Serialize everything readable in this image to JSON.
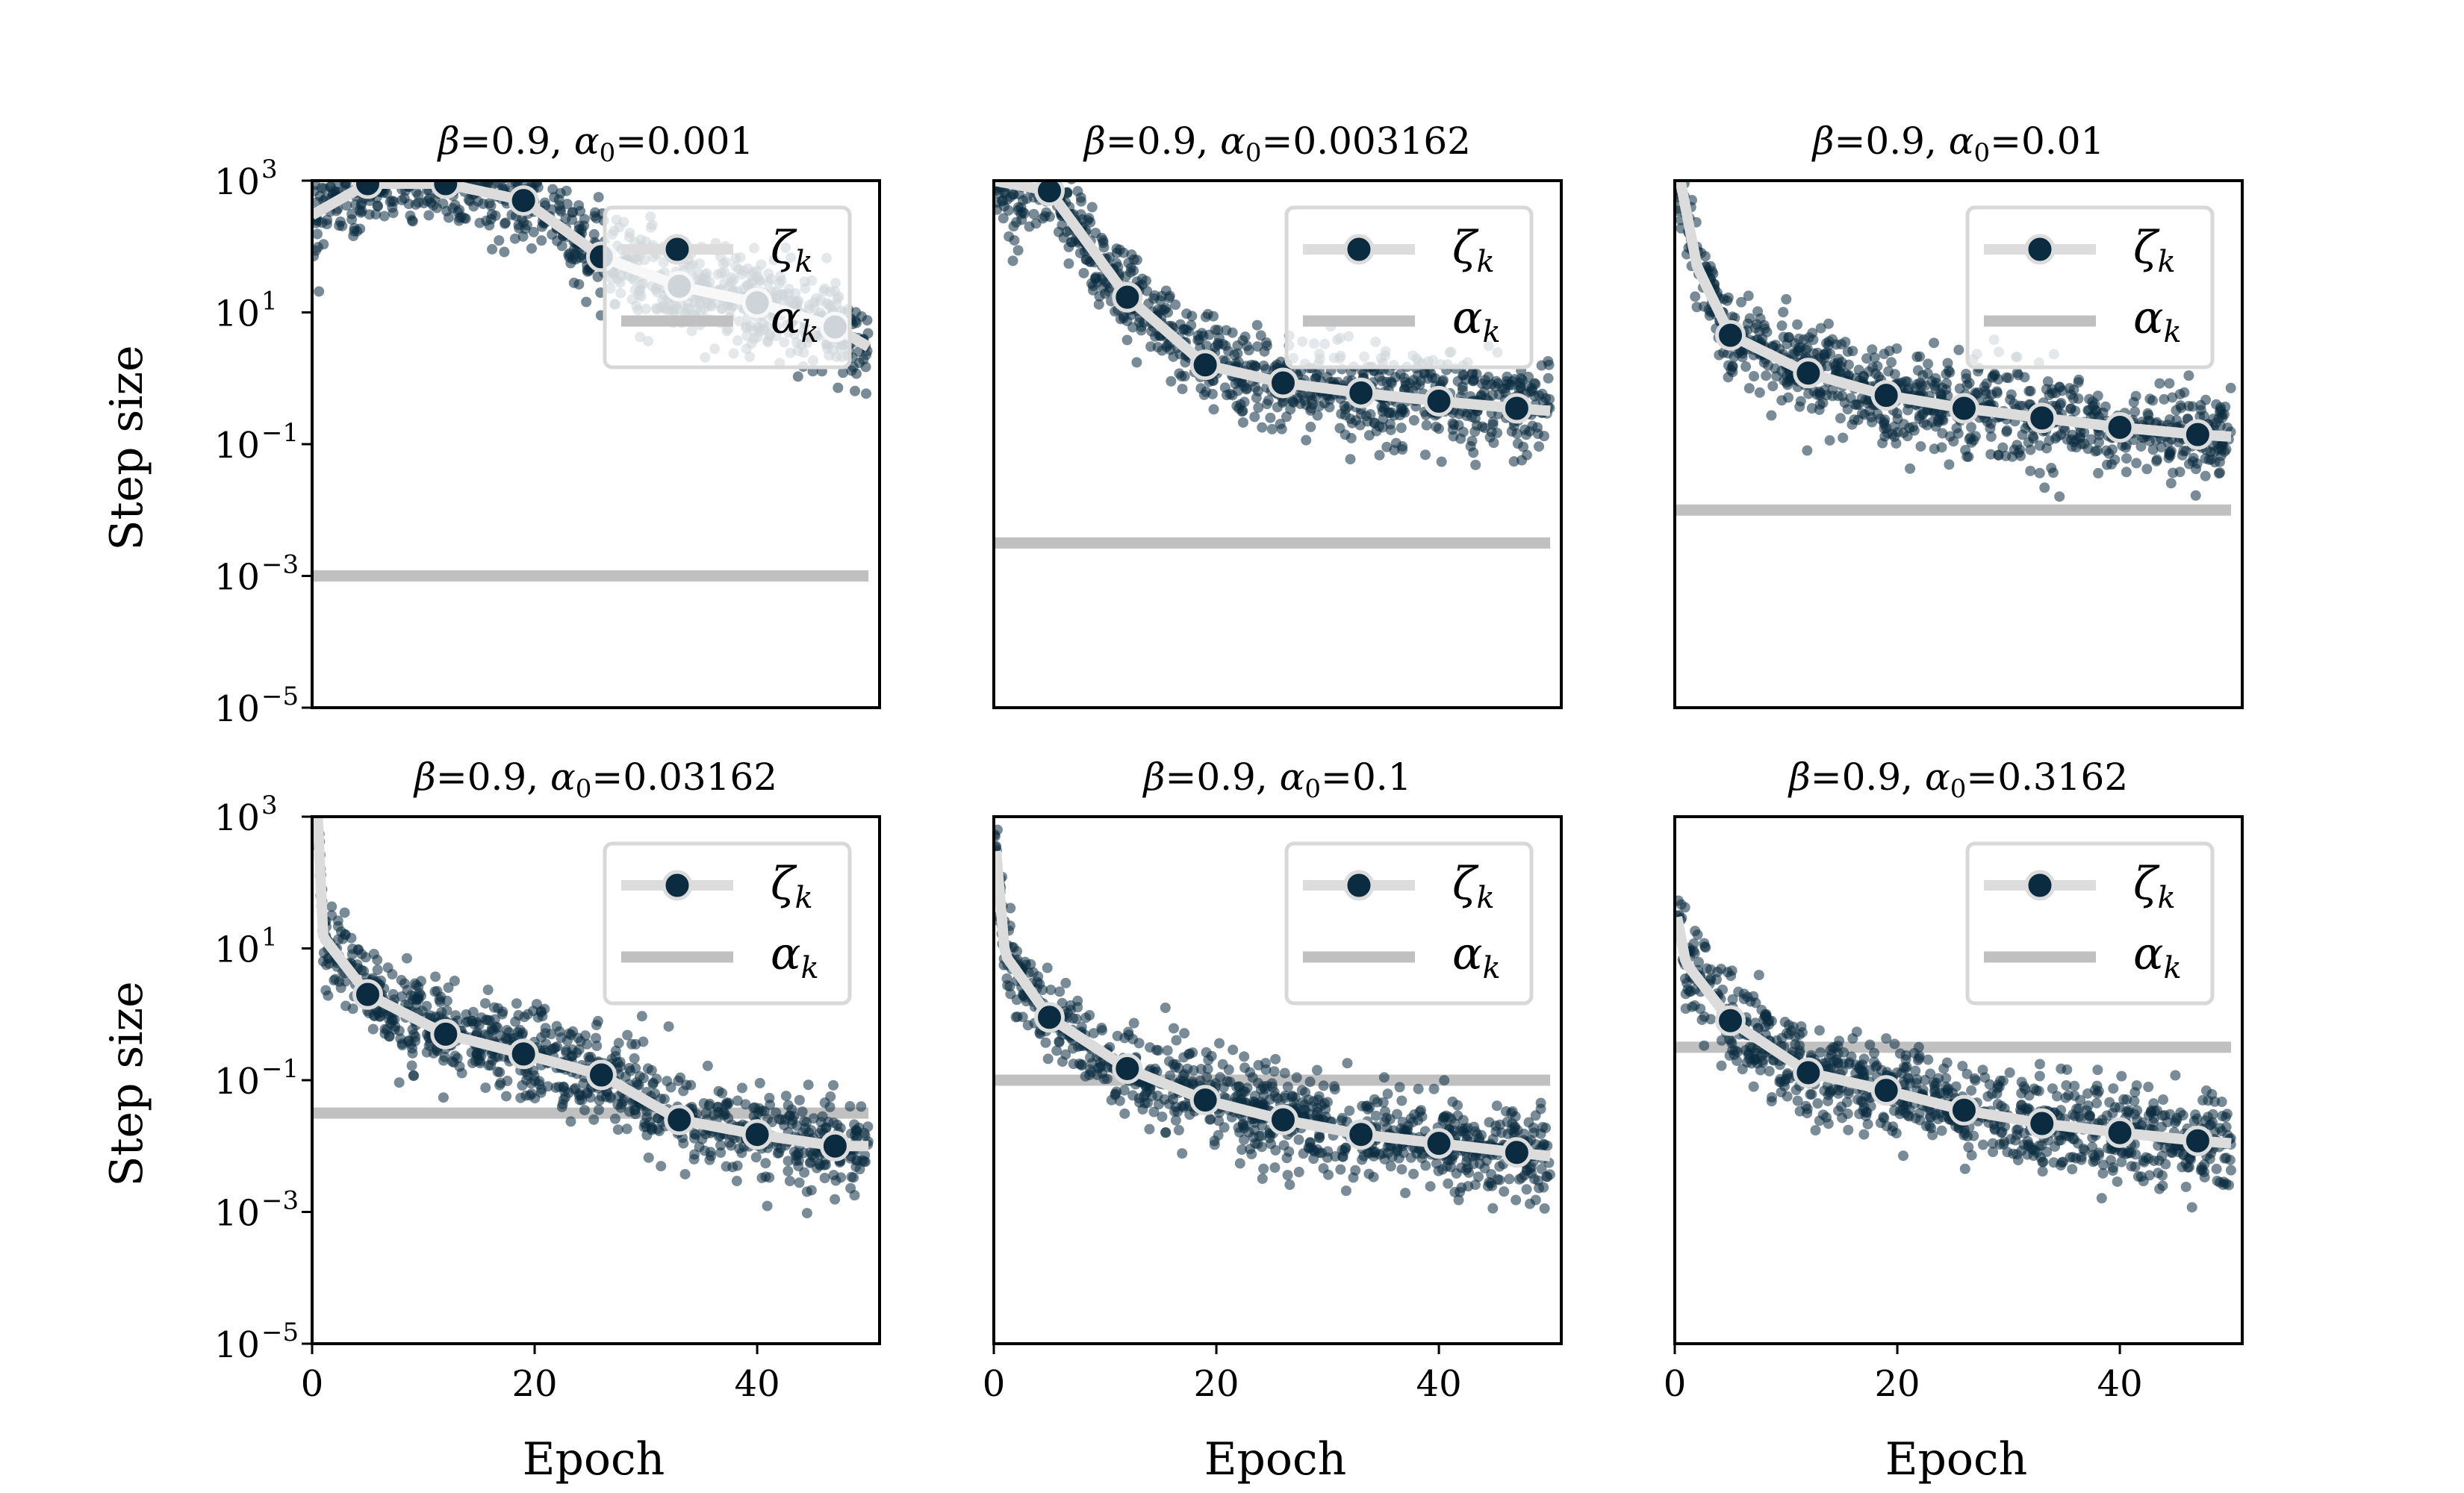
{
  "figure": {
    "ylabel": "Step size",
    "xlabel": "Epoch"
  },
  "chart_data": [
    {
      "type": "scatter",
      "title": "β=0.9, α₀=0.001",
      "title_parts": {
        "beta": "β=0.9, ",
        "alpha": "α",
        "sub": "0",
        "value": "=0.001"
      },
      "alpha0": 0.001,
      "xlim": [
        0,
        51
      ],
      "ylim": [
        1e-05,
        1000
      ],
      "yscale": "log",
      "xticks": [
        "0",
        "20",
        "40"
      ],
      "yticks": [
        "10",
        "10",
        "10",
        "10",
        "10"
      ],
      "ytick_exponents": [
        "3",
        "1",
        "−1",
        "−3",
        "−5"
      ],
      "legend": [
        "ζ",
        "α"
      ],
      "legend_subscript": "k",
      "legend_position": "top-right",
      "series": [
        {
          "name": "ζ_k",
          "x": [
            0,
            5,
            12,
            19,
            26,
            33,
            40,
            47,
            50
          ],
          "y": [
            300,
            900,
            900,
            500,
            70,
            25,
            14,
            6,
            3
          ]
        },
        {
          "name": "α_k",
          "x": [
            0,
            50
          ],
          "y": [
            0.001,
            0.001
          ]
        }
      ]
    },
    {
      "type": "scatter",
      "title": "β=0.9, α₀=0.003162",
      "title_parts": {
        "beta": "β=0.9, ",
        "alpha": "α",
        "sub": "0",
        "value": "=0.003162"
      },
      "alpha0": 0.003162,
      "xlim": [
        0,
        51
      ],
      "ylim": [
        1e-05,
        1000
      ],
      "yscale": "log",
      "xticks": [
        "0",
        "20",
        "40"
      ],
      "yticks": [],
      "legend": [
        "ζ",
        "α"
      ],
      "legend_subscript": "k",
      "legend_position": "top-right",
      "series": [
        {
          "name": "ζ_k",
          "x": [
            0,
            5,
            12,
            19,
            26,
            33,
            40,
            47,
            50
          ],
          "y": [
            1000,
            700,
            17,
            1.6,
            0.85,
            0.6,
            0.45,
            0.35,
            0.32
          ]
        },
        {
          "name": "α_k",
          "x": [
            0,
            50
          ],
          "y": [
            0.003162,
            0.003162
          ]
        }
      ]
    },
    {
      "type": "scatter",
      "title": "β=0.9, α₀=0.01",
      "title_parts": {
        "beta": "β=0.9, ",
        "alpha": "α",
        "sub": "0",
        "value": "=0.01"
      },
      "alpha0": 0.01,
      "xlim": [
        0,
        51
      ],
      "ylim": [
        1e-05,
        1000
      ],
      "yscale": "log",
      "xticks": [
        "0",
        "20",
        "40"
      ],
      "yticks": [],
      "legend": [
        "ζ",
        "α"
      ],
      "legend_subscript": "k",
      "legend_position": "top-right",
      "series": [
        {
          "name": "ζ_k",
          "x": [
            0.5,
            2,
            5,
            12,
            19,
            26,
            33,
            40,
            47,
            50
          ],
          "y": [
            1000,
            50,
            4.5,
            1.2,
            0.55,
            0.35,
            0.25,
            0.18,
            0.14,
            0.13
          ]
        },
        {
          "name": "α_k",
          "x": [
            0,
            50
          ],
          "y": [
            0.01,
            0.01
          ]
        }
      ]
    },
    {
      "type": "scatter",
      "title": "β=0.9, α₀=0.03162",
      "title_parts": {
        "beta": "β=0.9, ",
        "alpha": "α",
        "sub": "0",
        "value": "=0.03162"
      },
      "alpha0": 0.03162,
      "xlim": [
        0,
        51
      ],
      "ylim": [
        1e-05,
        1000
      ],
      "yscale": "log",
      "xticks": [
        "0",
        "20",
        "40"
      ],
      "yticks": [
        "10",
        "10",
        "10",
        "10",
        "10"
      ],
      "ytick_exponents": [
        "3",
        "1",
        "−1",
        "−3",
        "−5"
      ],
      "legend": [
        "ζ",
        "α"
      ],
      "legend_subscript": "k",
      "legend_position": "top-right",
      "series": [
        {
          "name": "ζ_k",
          "x": [
            0.5,
            1,
            5,
            12,
            19,
            26,
            33,
            40,
            47,
            50
          ],
          "y": [
            1000,
            15,
            2,
            0.5,
            0.25,
            0.12,
            0.025,
            0.015,
            0.01,
            0.01
          ]
        },
        {
          "name": "α_k",
          "x": [
            0,
            50
          ],
          "y": [
            0.03162,
            0.03162
          ]
        }
      ]
    },
    {
      "type": "scatter",
      "title": "β=0.9, α₀=0.1",
      "title_parts": {
        "beta": "β=0.9, ",
        "alpha": "α",
        "sub": "0",
        "value": "=0.1"
      },
      "alpha0": 0.1,
      "xlim": [
        0,
        51
      ],
      "ylim": [
        1e-05,
        1000
      ],
      "yscale": "log",
      "xticks": [
        "0",
        "20",
        "40"
      ],
      "yticks": [],
      "legend": [
        "ζ",
        "α"
      ],
      "legend_subscript": "k",
      "legend_position": "top-right",
      "series": [
        {
          "name": "ζ_k",
          "x": [
            0.2,
            1,
            5,
            12,
            19,
            26,
            33,
            40,
            47,
            50
          ],
          "y": [
            300,
            8,
            0.9,
            0.15,
            0.05,
            0.025,
            0.015,
            0.011,
            0.008,
            0.007
          ]
        },
        {
          "name": "α_k",
          "x": [
            0,
            50
          ],
          "y": [
            0.1,
            0.1
          ]
        }
      ]
    },
    {
      "type": "scatter",
      "title": "β=0.9, α₀=0.3162",
      "title_parts": {
        "beta": "β=0.9, ",
        "alpha": "α",
        "sub": "0",
        "value": "=0.3162"
      },
      "alpha0": 0.3162,
      "xlim": [
        0,
        51
      ],
      "ylim": [
        1e-05,
        1000
      ],
      "yscale": "log",
      "xticks": [
        "0",
        "20",
        "40"
      ],
      "yticks": [],
      "legend": [
        "ζ",
        "α"
      ],
      "legend_subscript": "k",
      "legend_position": "top-right",
      "series": [
        {
          "name": "ζ_k",
          "x": [
            0.2,
            1,
            5,
            12,
            19,
            26,
            33,
            40,
            47,
            50
          ],
          "y": [
            30,
            6,
            0.8,
            0.13,
            0.07,
            0.035,
            0.022,
            0.016,
            0.012,
            0.011
          ]
        },
        {
          "name": "α_k",
          "x": [
            0,
            50
          ],
          "y": [
            0.3162,
            0.3162
          ]
        }
      ]
    }
  ]
}
